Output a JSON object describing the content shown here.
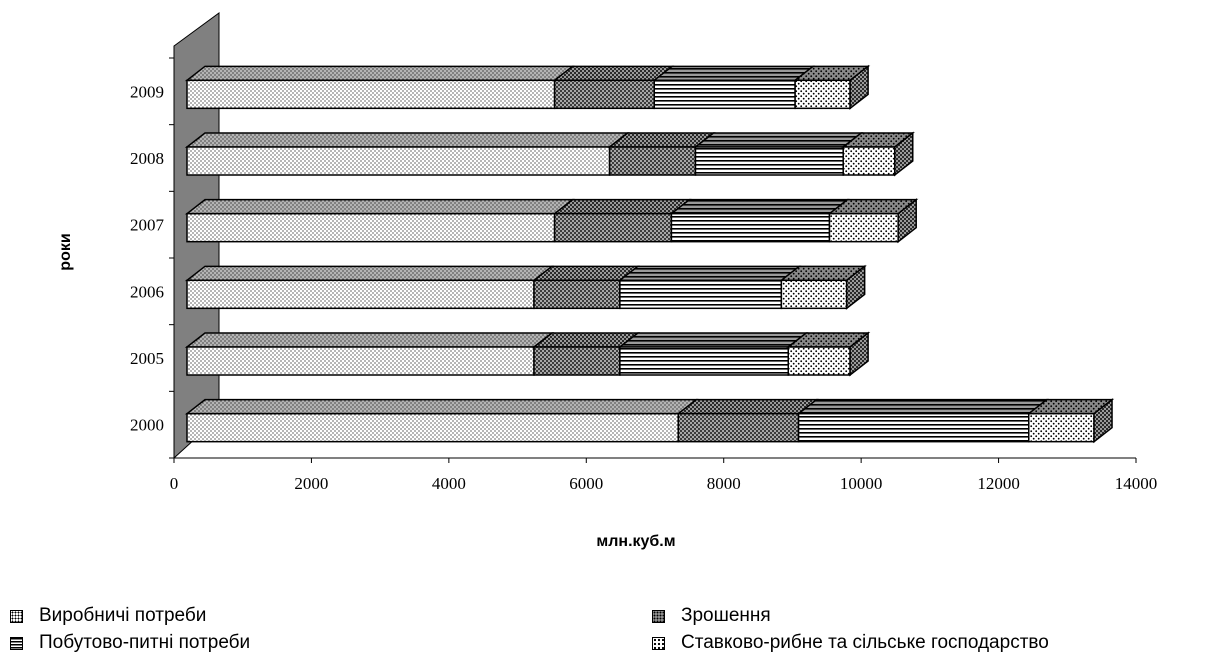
{
  "chart_data": {
    "type": "bar",
    "orientation": "horizontal",
    "stacked": true,
    "three_d": true,
    "categories": [
      "2000",
      "2005",
      "2006",
      "2007",
      "2008",
      "2009"
    ],
    "series": [
      {
        "name": "Виробничі потреби",
        "values": [
          7150,
          5050,
          5050,
          5350,
          6150,
          5350
        ],
        "pattern": "dots"
      },
      {
        "name": "Зрошення",
        "values": [
          1750,
          1250,
          1250,
          1700,
          1250,
          1450
        ],
        "pattern": "cross"
      },
      {
        "name": "Побутово-питні потреби",
        "values": [
          3350,
          2450,
          2350,
          2300,
          2150,
          2050
        ],
        "pattern": "lines"
      },
      {
        "name": "Ставково-рибне та сільське господарство",
        "values": [
          950,
          900,
          950,
          1000,
          750,
          800
        ],
        "pattern": "bigdots"
      }
    ],
    "xlabel": "млн.куб.м",
    "ylabel": "роки",
    "xlim": [
      0,
      14000
    ],
    "xticks": [
      "0",
      "2000",
      "4000",
      "6000",
      "8000",
      "10000",
      "12000",
      "14000"
    ],
    "grid": false,
    "legend_position": "bottom",
    "colors": {
      "dots": "#ffffff",
      "cross": "#3a3a3a",
      "lines": "#ffffff",
      "bigdots": "#ffffff",
      "wall": "#808080"
    }
  },
  "legend": {
    "items": [
      {
        "label": "Виробничі потреби",
        "icon": "dotted-square-icon"
      },
      {
        "label": "Зрошення",
        "icon": "checkered-square-icon"
      },
      {
        "label": "Побутово-питні потреби",
        "icon": "striped-square-icon"
      },
      {
        "label": "Ставково-рибне та сільське господарство",
        "icon": "dotted-square-icon"
      }
    ]
  }
}
